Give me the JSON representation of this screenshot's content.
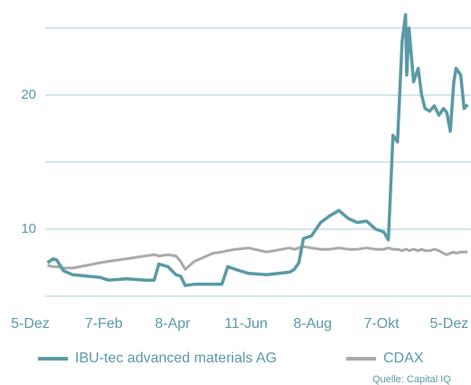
{
  "chart_data": {
    "type": "line",
    "x": [
      15,
      20,
      23,
      29,
      37,
      49,
      61,
      68,
      84,
      100,
      108,
      112,
      120,
      127,
      131,
      135,
      143,
      159,
      167,
      172,
      179,
      190,
      206,
      226,
      230,
      234,
      238,
      245,
      253,
      261,
      269,
      277,
      285,
      293,
      301,
      308,
      312,
      316,
      320,
      324,
      327,
      328,
      330,
      334,
      338,
      341,
      344,
      348,
      352,
      356,
      360,
      363,
      366,
      369,
      371,
      375,
      378,
      381
    ],
    "series": [
      {
        "name": "IBU-tec advanced materials AG",
        "color": "#5a9aa6",
        "values": [
          7.5,
          7.8,
          7.7,
          6.9,
          6.6,
          6.5,
          6.4,
          6.2,
          6.3,
          6.2,
          6.2,
          7.4,
          7.2,
          6.6,
          6.5,
          5.8,
          5.9,
          5.9,
          5.9,
          7.2,
          7.0,
          6.7,
          6.6,
          6.8,
          7.0,
          7.5,
          9.3,
          9.5,
          10.5,
          11.0,
          11.4,
          10.8,
          10.5,
          10.6,
          10.0,
          9.8,
          9.2,
          17.0,
          16.5,
          24.0,
          26.0,
          21.5,
          25.0,
          21.0,
          22.0,
          20.0,
          19.0,
          18.8,
          19.2,
          18.5,
          19.0,
          18.7,
          17.3,
          21.0,
          22.0,
          21.5,
          19.0,
          19.3
        ]
      },
      {
        "name": "CDAX",
        "color": "#aaaaaa",
        "values": [
          7.3,
          7.2,
          7.2,
          7.1,
          7.1,
          7.3,
          7.5,
          7.6,
          7.8,
          8.0,
          8.1,
          8.0,
          8.1,
          8.0,
          7.6,
          7.0,
          7.6,
          8.2,
          8.3,
          8.4,
          8.5,
          8.6,
          8.3,
          8.6,
          8.5,
          8.6,
          8.7,
          8.6,
          8.5,
          8.5,
          8.6,
          8.5,
          8.5,
          8.6,
          8.5,
          8.5,
          8.6,
          8.5,
          8.5,
          8.4,
          8.5,
          8.5,
          8.4,
          8.5,
          8.4,
          8.5,
          8.4,
          8.4,
          8.5,
          8.4,
          8.2,
          8.1,
          8.2,
          8.3,
          8.2,
          8.3,
          8.3,
          8.3
        ]
      }
    ],
    "xlim": [
      13,
      384
    ],
    "xticks": [
      {
        "value": 0,
        "label": "5-Dez"
      },
      {
        "value": 64,
        "label": "7-Feb"
      },
      {
        "value": 124,
        "label": "8-Apr"
      },
      {
        "value": 188,
        "label": "11-Jun"
      },
      {
        "value": 246,
        "label": "8-Aug"
      },
      {
        "value": 306,
        "label": "7-Okt"
      },
      {
        "value": 365,
        "label": "5-Dez"
      }
    ],
    "ylim": [
      4.5,
      26.5
    ],
    "yticks": [
      10,
      20
    ],
    "ygrid": [
      5,
      10,
      15,
      20,
      25
    ],
    "grid": true,
    "grid_color": "#d5e6ea",
    "legend": "bottom",
    "source": "Quelle: Capital IQ"
  }
}
